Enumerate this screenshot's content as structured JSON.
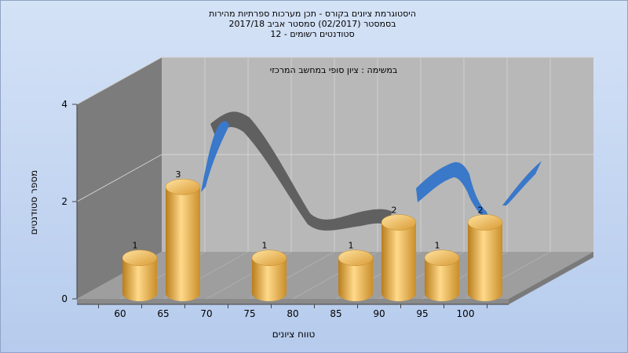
{
  "chart_data": {
    "type": "bar",
    "title_lines": [
      "היסטוגרמת ציונים בקורס - תכן מערכות ספרתיות מהירות",
      "בסמסטר  (02/2017)  סמסטר אביב 2017/18",
      "סטודנטים רשומים - 12"
    ],
    "subtitle": "במשימה : ציון סופי במחשב המרכזי",
    "xlabel": "טווח ציונים",
    "ylabel": "מספר סטודנטים",
    "x_ticks": [
      "60",
      "65",
      "70",
      "75",
      "80",
      "85",
      "90",
      "95",
      "100"
    ],
    "y_ticks": [
      "0",
      "2",
      "4"
    ],
    "ylim": [
      0,
      4
    ],
    "categories": [
      "60",
      "65",
      "70",
      "75",
      "80",
      "85",
      "90",
      "95",
      "100"
    ],
    "values": [
      1,
      3,
      0,
      1,
      0,
      1,
      2,
      1,
      2
    ],
    "value_labels": [
      "1",
      "3",
      "",
      "1",
      "",
      "1",
      "2",
      "1",
      "2"
    ],
    "grid": true,
    "colors": {
      "background": "#c2d4ef",
      "plot_back": "#b8b8b8",
      "plot_floor": "#9e9e9e",
      "plot_side": "#7c7c7c",
      "bar_light": "#ffd98a",
      "bar_dark": "#b97d1c",
      "curve_front": "#3a78c9",
      "curve_back": "#606060"
    }
  }
}
